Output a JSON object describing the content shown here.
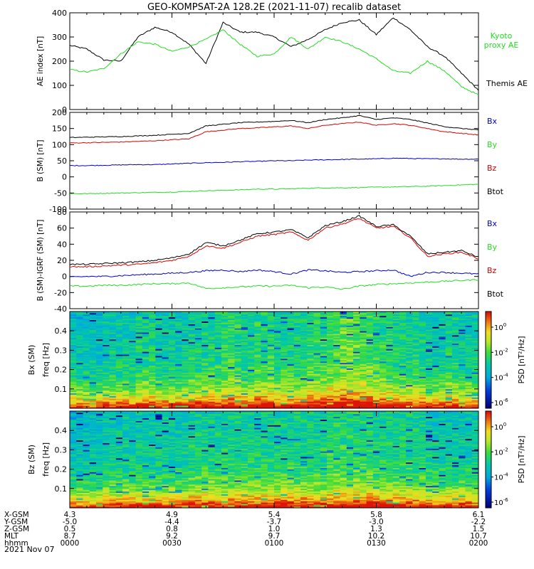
{
  "title": "GEO-KOMPSAT-2A 128.2E (2021-11-07) recalib dataset",
  "colors": {
    "black": "#000000",
    "green": "#22dd22",
    "red": "#dd0000",
    "blue": "#0000cc"
  },
  "time_axis": {
    "ticks": [
      "0000",
      "0030",
      "0100",
      "0130",
      "0200"
    ]
  },
  "ephemeris": {
    "rows": [
      {
        "label": "X-GSM",
        "values": [
          "4.3",
          "4.9",
          "5.4",
          "5.8",
          "6.1"
        ]
      },
      {
        "label": "Y-GSM",
        "values": [
          "-5.0",
          "-4.4",
          "-3.7",
          "-3.0",
          "-2.2"
        ]
      },
      {
        "label": "Z-GSM",
        "values": [
          "0.5",
          "0.8",
          "1.0",
          "1.3",
          "1.5"
        ]
      },
      {
        "label": "MLT",
        "values": [
          "8.7",
          "9.2",
          "9.7",
          "10.2",
          "10.7"
        ]
      },
      {
        "label": "hhmm",
        "values": [
          "0000",
          "0030",
          "0100",
          "0130",
          "0200"
        ]
      }
    ],
    "date": "2021 Nov 07"
  },
  "chart_data": [
    {
      "type": "line",
      "ylabel": "AE index [nT]",
      "ylim": [
        0,
        400
      ],
      "yticks": [
        "0",
        "100",
        "200",
        "300",
        "400"
      ],
      "x_minutes": [
        0,
        5,
        10,
        15,
        20,
        25,
        30,
        35,
        40,
        45,
        50,
        55,
        60,
        65,
        70,
        75,
        80,
        85,
        90,
        95,
        100,
        105,
        110,
        115,
        120
      ],
      "series": [
        {
          "name": "Themis AE",
          "color": "#000000",
          "values": [
            265,
            250,
            205,
            200,
            300,
            340,
            320,
            270,
            190,
            360,
            320,
            320,
            300,
            260,
            290,
            330,
            360,
            370,
            310,
            380,
            330,
            260,
            220,
            150,
            80
          ]
        },
        {
          "name": "Kyoto proxy AE",
          "color": "#22dd22",
          "values": [
            165,
            155,
            170,
            230,
            280,
            270,
            240,
            260,
            290,
            330,
            270,
            220,
            230,
            300,
            250,
            300,
            280,
            250,
            210,
            160,
            150,
            200,
            160,
            95,
            60
          ]
        }
      ],
      "legend": [
        "Kyoto proxy AE",
        "Themis AE"
      ]
    },
    {
      "type": "line",
      "ylabel": "B (SM) [nT]",
      "ylim": [
        -100,
        200
      ],
      "yticks": [
        "-100",
        "-50",
        "0",
        "50",
        "100",
        "150",
        "200"
      ],
      "x_minutes": [
        0,
        5,
        10,
        15,
        20,
        25,
        30,
        35,
        40,
        45,
        50,
        55,
        60,
        65,
        70,
        75,
        80,
        85,
        90,
        95,
        100,
        105,
        110,
        115,
        120
      ],
      "series": [
        {
          "name": "Bx",
          "color": "#0000cc",
          "values": [
            35,
            35,
            36,
            37,
            38,
            38,
            40,
            42,
            44,
            45,
            47,
            48,
            50,
            50,
            52,
            53,
            54,
            55,
            56,
            58,
            57,
            56,
            56,
            55,
            55
          ]
        },
        {
          "name": "By",
          "color": "#22dd22",
          "values": [
            -52,
            -52,
            -51,
            -50,
            -49,
            -48,
            -47,
            -45,
            -43,
            -42,
            -40,
            -38,
            -38,
            -37,
            -35,
            -34,
            -34,
            -33,
            -32,
            -31,
            -30,
            -29,
            -27,
            -25,
            -23
          ]
        },
        {
          "name": "Bz",
          "color": "#dd0000",
          "values": [
            105,
            106,
            107,
            108,
            110,
            112,
            115,
            118,
            140,
            145,
            150,
            152,
            155,
            158,
            150,
            160,
            165,
            170,
            160,
            165,
            160,
            150,
            140,
            135,
            130
          ]
        },
        {
          "name": "Btot",
          "color": "#000000",
          "values": [
            122,
            123,
            124,
            125,
            127,
            129,
            132,
            135,
            158,
            163,
            168,
            170,
            172,
            175,
            168,
            178,
            183,
            190,
            178,
            183,
            178,
            167,
            156,
            150,
            146
          ]
        }
      ],
      "legend": [
        "Bx",
        "By",
        "Bz",
        "Btot"
      ]
    },
    {
      "type": "line",
      "ylabel": "B (SM)-IGRF (SM) [nT]",
      "ylim": [
        -40,
        80
      ],
      "yticks": [
        "-40",
        "-20",
        "0",
        "20",
        "40",
        "60",
        "80"
      ],
      "x_minutes": [
        0,
        5,
        10,
        15,
        20,
        25,
        30,
        35,
        40,
        45,
        50,
        55,
        60,
        65,
        70,
        75,
        80,
        85,
        90,
        95,
        100,
        105,
        110,
        115,
        120
      ],
      "series": [
        {
          "name": "Bx",
          "color": "#0000cc",
          "values": [
            -1,
            0,
            0,
            1,
            2,
            3,
            4,
            5,
            7,
            8,
            6,
            8,
            6,
            3,
            8,
            7,
            5,
            6,
            7,
            8,
            0,
            5,
            5,
            4,
            3
          ]
        },
        {
          "name": "By",
          "color": "#22dd22",
          "values": [
            -12,
            -12,
            -11,
            -11,
            -10,
            -9,
            -9,
            -8,
            -15,
            -14,
            -13,
            -12,
            -12,
            -11,
            -14,
            -13,
            -16,
            -12,
            -10,
            -9,
            -8,
            -7,
            -6,
            -5,
            -4
          ]
        },
        {
          "name": "Bz",
          "color": "#dd0000",
          "values": [
            12,
            12,
            13,
            14,
            15,
            17,
            20,
            25,
            38,
            35,
            42,
            50,
            52,
            55,
            45,
            60,
            65,
            72,
            60,
            62,
            48,
            25,
            28,
            30,
            22
          ]
        },
        {
          "name": "Btot",
          "color": "#000000",
          "values": [
            15,
            15,
            16,
            17,
            18,
            20,
            23,
            28,
            42,
            38,
            45,
            53,
            55,
            58,
            48,
            63,
            68,
            75,
            62,
            64,
            50,
            28,
            30,
            32,
            24
          ]
        }
      ],
      "legend": [
        "Bx",
        "By",
        "Bz",
        "Btot"
      ]
    },
    {
      "type": "heatmap",
      "ylabel": "Bx (SM) freq [Hz]",
      "ylim": [
        0,
        0.5
      ],
      "yticks": [
        "0.1",
        "0.2",
        "0.3",
        "0.4"
      ],
      "colorbar_label": "PSD [nT²/Hz]",
      "colorbar_ticks": [
        "10^0",
        "10^-2",
        "10^-4",
        "10^-6"
      ],
      "level_by_time": [
        1,
        1,
        2,
        2,
        3,
        2,
        2,
        3,
        3,
        4,
        3,
        4,
        3,
        3,
        4,
        5,
        6,
        5,
        4,
        3,
        3,
        2,
        3,
        2,
        2
      ]
    },
    {
      "type": "heatmap",
      "ylabel": "Bz (SM) freq [Hz]",
      "ylim": [
        0,
        0.5
      ],
      "yticks": [
        "0.1",
        "0.2",
        "0.3",
        "0.4"
      ],
      "colorbar_label": "PSD [nT²/Hz]",
      "colorbar_ticks": [
        "10^0",
        "10^-2",
        "10^-4",
        "10^-6"
      ],
      "level_by_time": [
        1,
        1,
        2,
        2,
        2,
        2,
        2,
        3,
        3,
        3,
        3,
        3,
        3,
        3,
        3,
        4,
        4,
        4,
        3,
        3,
        3,
        2,
        2,
        2,
        2
      ]
    }
  ]
}
